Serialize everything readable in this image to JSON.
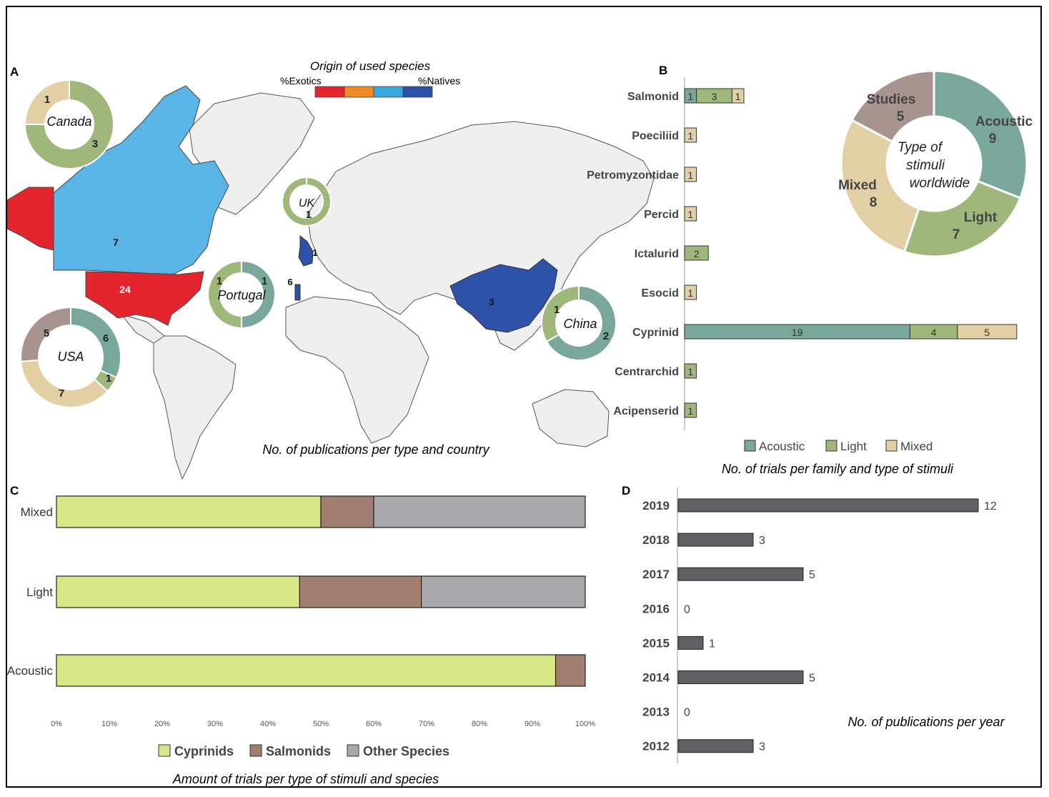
{
  "panels": [
    {
      "letter": "A"
    },
    {
      "letter": "B"
    },
    {
      "letter": "C"
    },
    {
      "letter": "D"
    }
  ],
  "colors": {
    "exotic": "#e3262d",
    "exotic_mid": "#f08a24",
    "native_mid": "#3ba7dd",
    "native": "#2e52a8",
    "land": "#efefef",
    "acoustic": "#7aa79b",
    "light": "#9fb77a",
    "mixed": "#e3cfa4",
    "studies": "#a8948f",
    "cyprinids": "#d9e687",
    "salmonids": "#a07e70",
    "other_species": "#a7a8ab",
    "year_bar": "#5f6064"
  },
  "map": {
    "legend_title": "Origin of used species",
    "legend_left": "%Exotics",
    "legend_right": "%Natives",
    "caption": "No. of publications per type and country",
    "country_counts": [
      {
        "country": "Canada",
        "value": "7"
      },
      {
        "country": "USA",
        "value": "24"
      },
      {
        "country": "UK",
        "value": "1"
      },
      {
        "country": "Portugal",
        "value": "6"
      },
      {
        "country": "China",
        "value": "3"
      }
    ]
  },
  "donuts": [
    {
      "label": "Canada",
      "segments": [
        {
          "type": "Light",
          "value": 3
        },
        {
          "type": "Mixed",
          "value": 1
        }
      ]
    },
    {
      "label": "UK",
      "segments": [
        {
          "type": "Light",
          "value": 1
        }
      ]
    },
    {
      "label": "Portugal",
      "segments": [
        {
          "type": "Acoustic",
          "value": 1
        },
        {
          "type": "Light",
          "value": 1
        }
      ]
    },
    {
      "label": "China",
      "segments": [
        {
          "type": "Acoustic",
          "value": 2
        },
        {
          "type": "Light",
          "value": 1
        }
      ]
    },
    {
      "label": "USA",
      "segments": [
        {
          "type": "Acoustic",
          "value": 6
        },
        {
          "type": "Light",
          "value": 1
        },
        {
          "type": "Mixed",
          "value": 7
        },
        {
          "type": "Studies",
          "value": 5
        }
      ]
    }
  ],
  "chart_data": [
    {
      "type": "bar",
      "orientation": "horizontal-stacked",
      "panel": "B",
      "title": "No. of trials per family and type of stimuli",
      "categories": [
        "Salmonid",
        "Poeciliid",
        "Petromyzontidae",
        "Percid",
        "Ictalurid",
        "Esocid",
        "Cyprinid",
        "Centrarchid",
        "Acipenserid"
      ],
      "series": [
        {
          "name": "Acoustic",
          "values": [
            1,
            0,
            0,
            0,
            0,
            0,
            19,
            0,
            0
          ]
        },
        {
          "name": "Light",
          "values": [
            3,
            0,
            0,
            0,
            2,
            0,
            4,
            1,
            1
          ]
        },
        {
          "name": "Mixed",
          "values": [
            1,
            1,
            1,
            1,
            0,
            1,
            5,
            0,
            0
          ]
        }
      ],
      "legend": "bottom"
    },
    {
      "type": "pie",
      "panel": "B",
      "title": "Type of stimuli worldwide",
      "slices": [
        {
          "name": "Acoustic",
          "value": 9
        },
        {
          "name": "Light",
          "value": 7
        },
        {
          "name": "Mixed",
          "value": 8
        },
        {
          "name": "Studies",
          "value": 5
        }
      ]
    },
    {
      "type": "bar",
      "orientation": "horizontal-stacked-100",
      "panel": "C",
      "title": "Amount of trials per type of stimuli and species",
      "categories": [
        "Mixed",
        "Light",
        "Acoustic"
      ],
      "series": [
        {
          "name": "Cyprinids",
          "values": [
            50,
            46,
            94.4
          ]
        },
        {
          "name": "Salmonids",
          "values": [
            10,
            23,
            5.6
          ]
        },
        {
          "name": "Other Species",
          "values": [
            40,
            31,
            0
          ]
        }
      ],
      "x_ticks": [
        "0%",
        "10%",
        "20%",
        "30%",
        "40%",
        "50%",
        "60%",
        "70%",
        "80%",
        "90%",
        "100%"
      ],
      "xlim": [
        0,
        100
      ],
      "legend": "bottom"
    },
    {
      "type": "bar",
      "orientation": "horizontal",
      "panel": "D",
      "title": "No. of publications per year",
      "categories": [
        "2019",
        "2018",
        "2017",
        "2016",
        "2015",
        "2014",
        "2013",
        "2012"
      ],
      "values": [
        12,
        3,
        5,
        0,
        1,
        5,
        0,
        3
      ]
    }
  ]
}
